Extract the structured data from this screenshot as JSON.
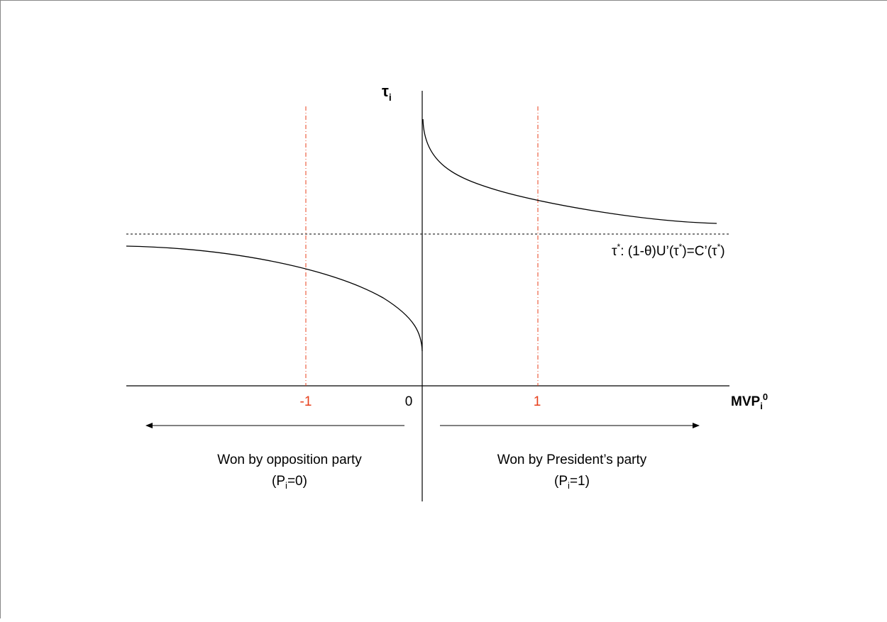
{
  "y_axis_label": {
    "base": "τ",
    "sub": "i"
  },
  "x_axis_label": {
    "base": "MVP",
    "sub": "i",
    "sup": "0"
  },
  "x_tick_labels": [
    "-1",
    "0",
    "1"
  ],
  "threshold_label": {
    "parts": [
      "τ",
      "*",
      ": (1-",
      "θ",
      ")U’(",
      "τ",
      "*",
      ")=C’(",
      "τ",
      "*",
      ")"
    ]
  },
  "regions": [
    {
      "line1": "Won by opposition party",
      "p_open": "(P",
      "p_sub": "i",
      "p_close": "=0)"
    },
    {
      "line1": "Won by President’s party",
      "p_open": "(P",
      "p_sub": "i",
      "p_close": "=1)"
    }
  ]
}
